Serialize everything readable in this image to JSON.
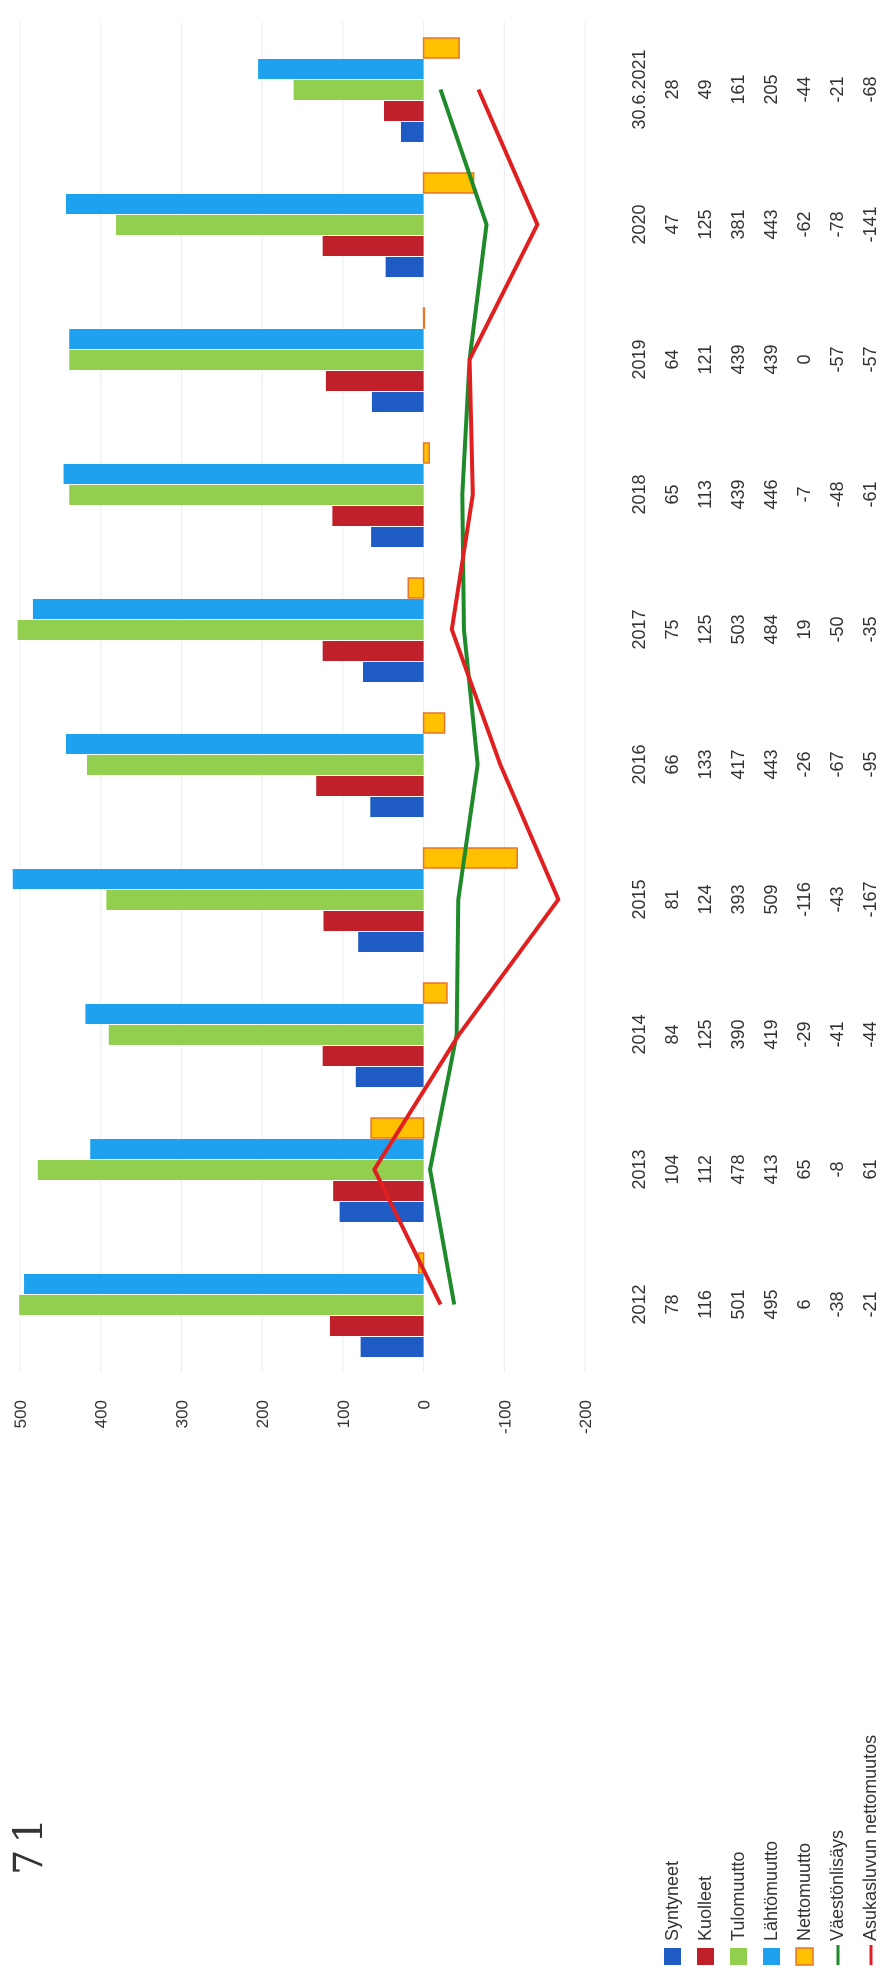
{
  "annotation": "71",
  "chart_data": {
    "type": "bar",
    "categories": [
      "2012",
      "2013",
      "2014",
      "2015",
      "2016",
      "2017",
      "2018",
      "2019",
      "2020",
      "30.6.2021"
    ],
    "ylim": [
      -200,
      500
    ],
    "yticks": [
      500,
      400,
      300,
      200,
      100,
      0,
      -100,
      -200
    ],
    "grid": true,
    "legend_position": "left",
    "series": [
      {
        "name": "Syntyneet",
        "kind": "bar",
        "color": "#1f5bc4",
        "values": [
          78,
          104,
          84,
          81,
          66,
          75,
          65,
          64,
          47,
          28
        ]
      },
      {
        "name": "Kuolleet",
        "kind": "bar",
        "color": "#c0202a",
        "values": [
          116,
          112,
          125,
          124,
          133,
          125,
          113,
          121,
          125,
          49
        ]
      },
      {
        "name": "Tulomuutto",
        "kind": "bar",
        "color": "#92cf4e",
        "values": [
          501,
          478,
          390,
          393,
          417,
          503,
          439,
          439,
          381,
          161
        ]
      },
      {
        "name": "Lähtömuutto",
        "kind": "bar",
        "color": "#1ea1ee",
        "values": [
          495,
          413,
          419,
          509,
          443,
          484,
          446,
          439,
          443,
          205
        ]
      },
      {
        "name": "Nettomuutto",
        "kind": "bar",
        "color": "#ffc000",
        "stroke": "#e8742a",
        "values": [
          6,
          65,
          -29,
          -116,
          -26,
          19,
          -7,
          0,
          -62,
          -44
        ]
      },
      {
        "name": "Väestönlisäys",
        "kind": "line",
        "color": "#1e8a2a",
        "values": [
          -38,
          -8,
          -41,
          -43,
          -67,
          -50,
          -48,
          -57,
          -78,
          -21
        ]
      },
      {
        "name": "Asukasluvun nettomuutos",
        "kind": "line",
        "color": "#e02020",
        "values": [
          -21,
          61,
          -44,
          -167,
          -95,
          -35,
          -61,
          -57,
          -141,
          -68
        ]
      }
    ]
  }
}
